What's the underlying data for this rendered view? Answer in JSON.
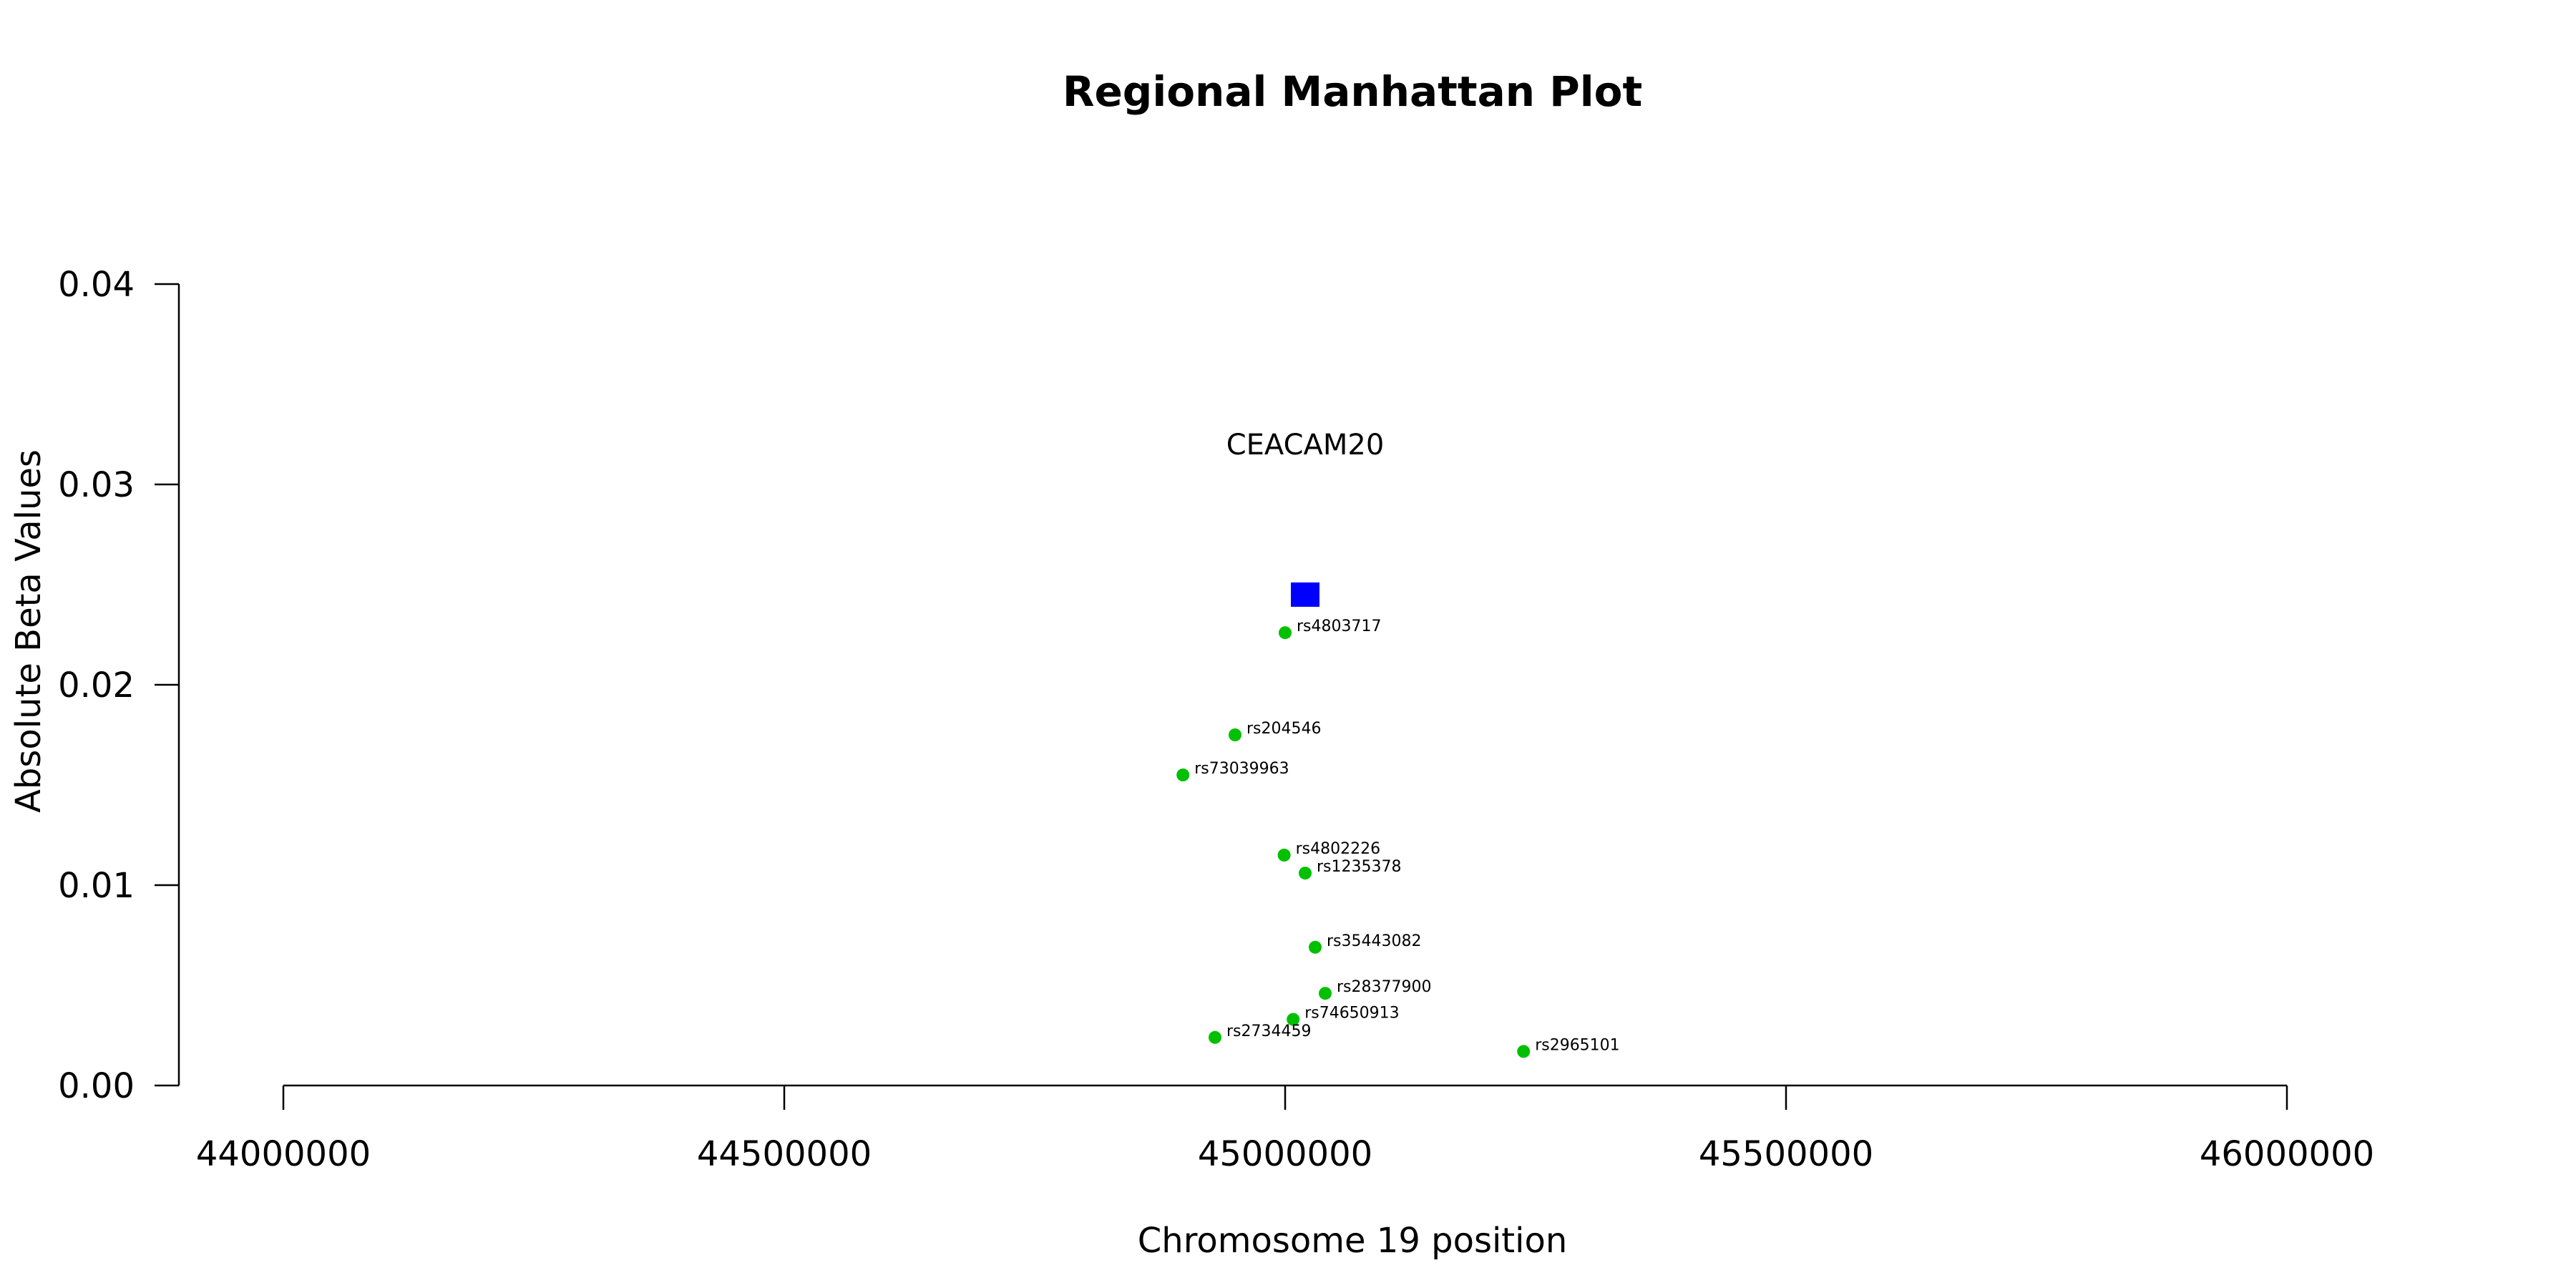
{
  "chart_data": {
    "type": "scatter",
    "title": "Regional Manhattan Plot",
    "xlabel": "Chromosome 19 position",
    "ylabel": "Absolute Beta Values",
    "xlim": [
      44000000,
      46000000
    ],
    "ylim": [
      0,
      0.04
    ],
    "x_ticks": [
      44000000,
      44500000,
      45000000,
      45500000,
      46000000
    ],
    "x_tick_labels": [
      "44000000",
      "44500000",
      "45000000",
      "45500000",
      "46000000"
    ],
    "y_ticks": [
      0,
      0.01,
      0.02,
      0.03,
      0.04
    ],
    "y_tick_labels": [
      "0.00",
      "0.01",
      "0.02",
      "0.03",
      "0.04"
    ],
    "grid": false,
    "series": [
      {
        "marker": "circle",
        "color": "#00c000",
        "points": [
          {
            "label": "rs4803717",
            "x": 45000000,
            "y": 0.0226
          },
          {
            "label": "rs204546",
            "x": 44950000,
            "y": 0.0175
          },
          {
            "label": "rs73039963",
            "x": 44898000,
            "y": 0.0155
          },
          {
            "label": "rs4802226",
            "x": 44999000,
            "y": 0.0115
          },
          {
            "label": "rs1235378",
            "x": 45020000,
            "y": 0.0106
          },
          {
            "label": "rs35443082",
            "x": 45030000,
            "y": 0.0069
          },
          {
            "label": "rs28377900",
            "x": 45040000,
            "y": 0.0046
          },
          {
            "label": "rs74650913",
            "x": 45008000,
            "y": 0.0033
          },
          {
            "label": "rs2734459",
            "x": 44930000,
            "y": 0.0024
          },
          {
            "label": "rs2965101",
            "x": 45238000,
            "y": 0.0017
          }
        ]
      },
      {
        "marker": "square",
        "color": "#0000ff",
        "points": [
          {
            "label": "CEACAM20",
            "x": 45020000,
            "y": 0.0245
          }
        ]
      }
    ]
  }
}
